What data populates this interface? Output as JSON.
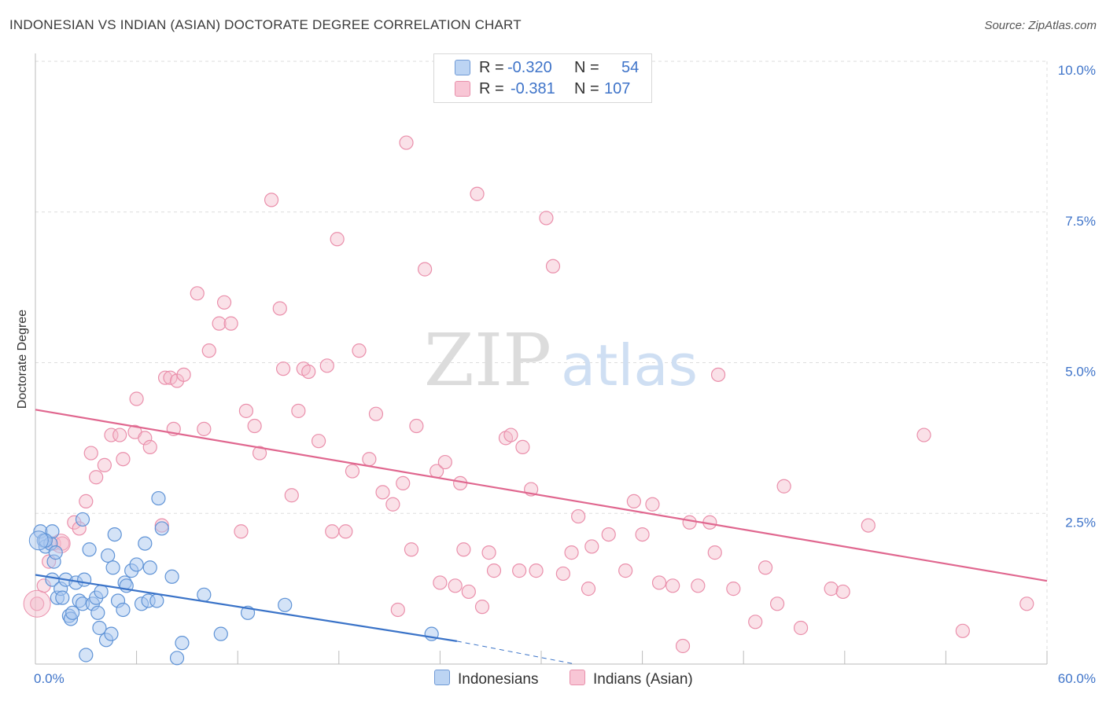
{
  "title": "INDONESIAN VS INDIAN (ASIAN) DOCTORATE DEGREE CORRELATION CHART",
  "source": "Source: ZipAtlas.com",
  "watermark": {
    "zip": "ZIP",
    "atlas": "atlas"
  },
  "colors": {
    "indonesians_fill": "#a9c8ef",
    "indonesians_stroke": "#5f93d6",
    "indonesians_line": "#3a73c8",
    "indians_fill": "#f5bccd",
    "indians_stroke": "#ea8fab",
    "indians_line": "#e0678f",
    "tick_label": "#3f74c9"
  },
  "legend": {
    "series": [
      {
        "r_label": "R =",
        "r_value": "-0.320",
        "n_label": "N =",
        "n_value": "54"
      },
      {
        "r_label": "R =",
        "r_value": "-0.381",
        "n_label": "N =",
        "n_value": "107"
      }
    ],
    "bottom": [
      "Indonesians",
      "Indians (Asian)"
    ]
  },
  "chart_data": {
    "type": "scatter",
    "title": "INDONESIAN VS INDIAN (ASIAN) DOCTORATE DEGREE CORRELATION CHART",
    "xlabel": "",
    "ylabel": "Doctorate Degree",
    "xlim": [
      0,
      60
    ],
    "ylim": [
      0,
      10
    ],
    "x_tick_labels": [
      "0.0%",
      "60.0%"
    ],
    "y_ticks": [
      2.5,
      5.0,
      7.5,
      10.0
    ],
    "y_tick_labels": [
      "2.5%",
      "5.0%",
      "7.5%",
      "10.0%"
    ],
    "grid": true,
    "legend_position": "top-center",
    "series": [
      {
        "name": "Indonesians",
        "r": -0.32,
        "n": 54,
        "trend": {
          "x": [
            0,
            25
          ],
          "y": [
            1.48,
            0.38
          ],
          "dashed_to": [
            32,
            0.0
          ]
        },
        "points": [
          [
            0.3,
            2.2
          ],
          [
            0.5,
            2.05
          ],
          [
            0.6,
            1.95
          ],
          [
            0.9,
            2.0
          ],
          [
            1.0,
            2.2
          ],
          [
            1.1,
            1.7
          ],
          [
            1.2,
            1.85
          ],
          [
            1.0,
            1.4
          ],
          [
            1.3,
            1.1
          ],
          [
            1.5,
            1.25
          ],
          [
            1.6,
            1.1
          ],
          [
            1.8,
            1.4
          ],
          [
            2.0,
            0.8
          ],
          [
            2.1,
            0.75
          ],
          [
            2.2,
            0.85
          ],
          [
            2.4,
            1.35
          ],
          [
            2.6,
            1.05
          ],
          [
            2.8,
            1.0
          ],
          [
            2.9,
            1.4
          ],
          [
            3.2,
            1.9
          ],
          [
            3.4,
            1.0
          ],
          [
            3.6,
            1.1
          ],
          [
            3.7,
            0.85
          ],
          [
            3.8,
            0.6
          ],
          [
            3.9,
            1.2
          ],
          [
            2.8,
            2.4
          ],
          [
            4.2,
            0.4
          ],
          [
            4.3,
            1.8
          ],
          [
            4.5,
            0.5
          ],
          [
            4.6,
            1.6
          ],
          [
            4.7,
            2.15
          ],
          [
            4.9,
            1.05
          ],
          [
            5.2,
            0.9
          ],
          [
            5.3,
            1.35
          ],
          [
            5.4,
            1.3
          ],
          [
            5.7,
            1.55
          ],
          [
            6.0,
            1.65
          ],
          [
            6.3,
            1.0
          ],
          [
            6.5,
            2.0
          ],
          [
            6.7,
            1.05
          ],
          [
            6.8,
            1.6
          ],
          [
            7.2,
            1.05
          ],
          [
            7.3,
            2.75
          ],
          [
            7.5,
            2.25
          ],
          [
            8.1,
            1.45
          ],
          [
            8.4,
            0.1
          ],
          [
            8.7,
            0.35
          ],
          [
            10.0,
            1.15
          ],
          [
            11.0,
            0.5
          ],
          [
            12.6,
            0.85
          ],
          [
            14.8,
            0.98
          ],
          [
            23.5,
            0.5
          ],
          [
            3.0,
            0.15
          ],
          [
            0.6,
            2.05
          ]
        ]
      },
      {
        "name": "Indians (Asian)",
        "r": -0.381,
        "n": 107,
        "trend": {
          "x": [
            0,
            60
          ],
          "y": [
            4.22,
            1.38
          ]
        },
        "points": [
          [
            0.1,
            1.0
          ],
          [
            0.5,
            1.3
          ],
          [
            0.8,
            1.7
          ],
          [
            1.1,
            2.0
          ],
          [
            1.6,
            2.0
          ],
          [
            2.3,
            2.35
          ],
          [
            2.6,
            2.25
          ],
          [
            3.0,
            2.7
          ],
          [
            3.3,
            3.5
          ],
          [
            3.6,
            3.1
          ],
          [
            4.1,
            3.3
          ],
          [
            4.5,
            3.8
          ],
          [
            5.0,
            3.8
          ],
          [
            5.2,
            3.4
          ],
          [
            5.9,
            3.85
          ],
          [
            6.0,
            4.4
          ],
          [
            6.5,
            3.75
          ],
          [
            6.8,
            3.6
          ],
          [
            7.5,
            2.3
          ],
          [
            7.7,
            4.75
          ],
          [
            8.0,
            4.75
          ],
          [
            8.2,
            3.9
          ],
          [
            8.4,
            4.7
          ],
          [
            8.8,
            4.8
          ],
          [
            9.6,
            6.15
          ],
          [
            10.0,
            3.9
          ],
          [
            10.3,
            5.2
          ],
          [
            10.9,
            5.65
          ],
          [
            11.2,
            6.0
          ],
          [
            11.6,
            5.65
          ],
          [
            12.2,
            2.2
          ],
          [
            12.5,
            4.2
          ],
          [
            13.0,
            3.95
          ],
          [
            13.3,
            3.5
          ],
          [
            14.0,
            7.7
          ],
          [
            14.5,
            5.9
          ],
          [
            14.7,
            4.9
          ],
          [
            15.2,
            2.8
          ],
          [
            15.6,
            4.2
          ],
          [
            15.9,
            4.9
          ],
          [
            16.2,
            4.85
          ],
          [
            16.8,
            3.7
          ],
          [
            17.3,
            4.95
          ],
          [
            17.6,
            2.2
          ],
          [
            17.9,
            7.05
          ],
          [
            18.4,
            2.2
          ],
          [
            18.8,
            3.2
          ],
          [
            19.2,
            5.2
          ],
          [
            19.8,
            3.4
          ],
          [
            20.2,
            4.15
          ],
          [
            20.6,
            2.85
          ],
          [
            21.2,
            2.65
          ],
          [
            21.5,
            0.9
          ],
          [
            21.8,
            3.0
          ],
          [
            22.0,
            8.65
          ],
          [
            22.3,
            1.9
          ],
          [
            22.6,
            3.95
          ],
          [
            23.1,
            6.55
          ],
          [
            23.8,
            3.2
          ],
          [
            24.0,
            1.35
          ],
          [
            24.3,
            3.35
          ],
          [
            24.9,
            1.3
          ],
          [
            25.2,
            3.0
          ],
          [
            25.4,
            1.9
          ],
          [
            25.7,
            1.2
          ],
          [
            26.2,
            7.8
          ],
          [
            26.5,
            0.95
          ],
          [
            26.9,
            1.85
          ],
          [
            27.2,
            1.55
          ],
          [
            27.9,
            3.75
          ],
          [
            28.2,
            3.8
          ],
          [
            28.7,
            1.55
          ],
          [
            28.9,
            3.6
          ],
          [
            29.4,
            2.9
          ],
          [
            29.7,
            1.55
          ],
          [
            30.3,
            7.4
          ],
          [
            30.7,
            6.6
          ],
          [
            31.3,
            1.5
          ],
          [
            31.8,
            1.85
          ],
          [
            32.2,
            2.45
          ],
          [
            32.8,
            1.25
          ],
          [
            33.0,
            1.95
          ],
          [
            34.0,
            2.15
          ],
          [
            35.0,
            1.55
          ],
          [
            35.5,
            2.7
          ],
          [
            36.0,
            2.15
          ],
          [
            36.6,
            2.65
          ],
          [
            37.0,
            1.35
          ],
          [
            37.8,
            1.3
          ],
          [
            38.4,
            0.3
          ],
          [
            38.8,
            2.35
          ],
          [
            39.3,
            1.3
          ],
          [
            40.0,
            2.35
          ],
          [
            40.3,
            1.85
          ],
          [
            40.5,
            4.8
          ],
          [
            41.4,
            1.25
          ],
          [
            42.7,
            0.7
          ],
          [
            43.3,
            1.6
          ],
          [
            44.0,
            1.0
          ],
          [
            44.4,
            2.95
          ],
          [
            45.4,
            0.6
          ],
          [
            47.2,
            1.25
          ],
          [
            47.9,
            1.2
          ],
          [
            49.4,
            2.3
          ],
          [
            52.7,
            3.8
          ],
          [
            55.0,
            0.55
          ],
          [
            58.8,
            1.0
          ]
        ]
      }
    ]
  }
}
